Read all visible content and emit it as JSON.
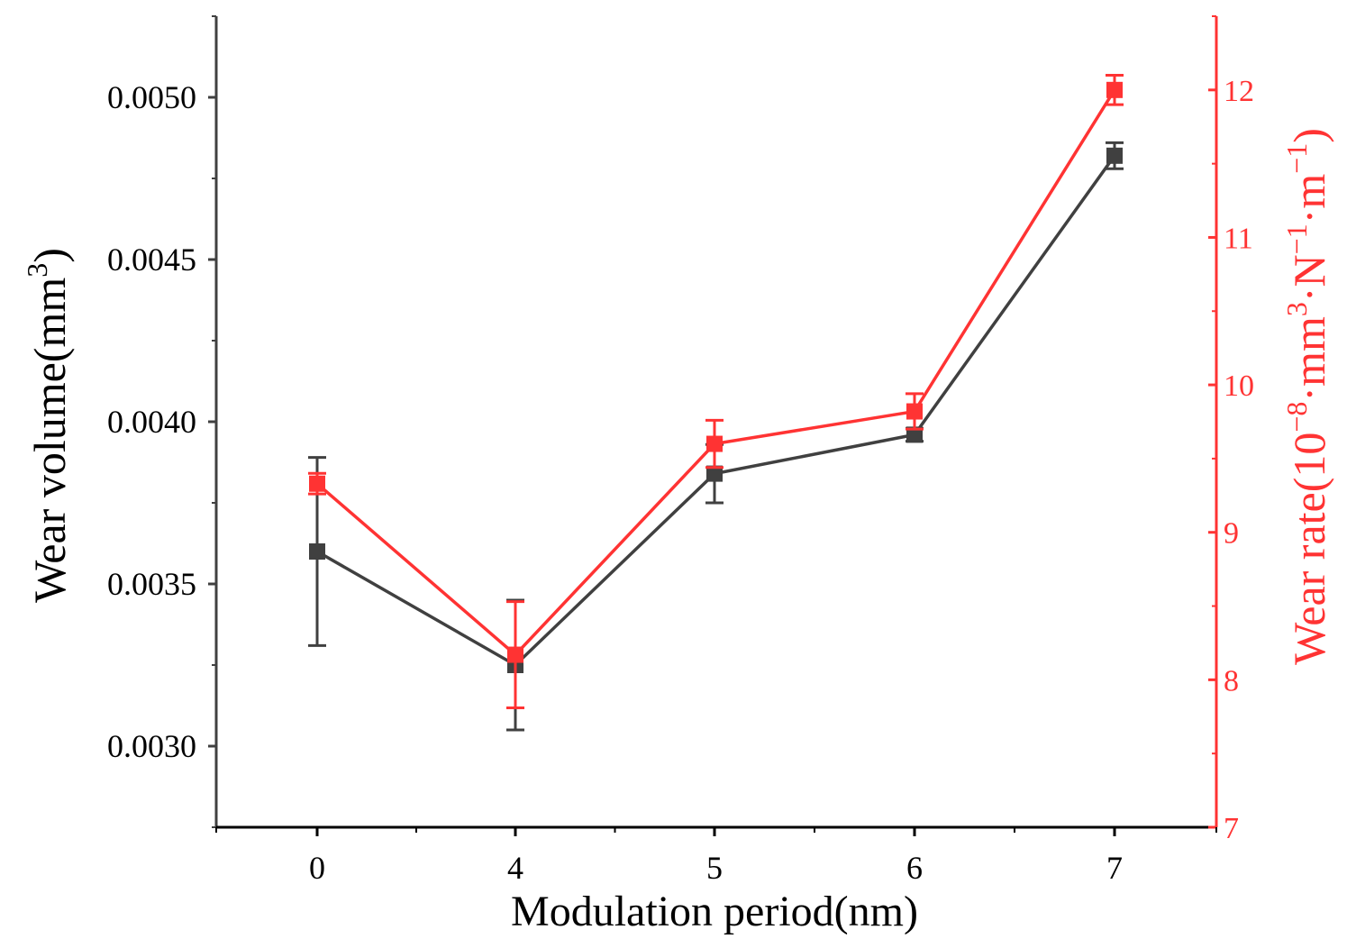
{
  "chart_data": {
    "type": "line",
    "x_categories": [
      "0",
      "4",
      "5",
      "6",
      "7"
    ],
    "xlabel": "Modulation period(nm)",
    "left_axis": {
      "label_main": "Wear volume(mm",
      "label_sup": "3",
      "label_close": ")",
      "range": [
        0.00275,
        0.00525
      ],
      "ticks": [
        0.003,
        0.0035,
        0.004,
        0.0045,
        0.005
      ],
      "tick_labels": [
        "0.0030",
        "0.0035",
        "0.0040",
        "0.0045",
        "0.0050"
      ],
      "color": "#404040"
    },
    "right_axis": {
      "label_parts": [
        {
          "t": "Wear rate(10",
          "sup": false
        },
        {
          "t": "−8",
          "sup": true
        },
        {
          "t": "·mm",
          "sup": false
        },
        {
          "t": "3",
          "sup": true
        },
        {
          "t": "·N",
          "sup": false
        },
        {
          "t": "−1",
          "sup": true
        },
        {
          "t": "·m",
          "sup": false
        },
        {
          "t": "−1",
          "sup": true
        },
        {
          "t": ")",
          "sup": false
        }
      ],
      "range": [
        7,
        12.5
      ],
      "ticks": [
        7,
        8,
        9,
        10,
        11,
        12
      ],
      "tick_labels": [
        "7",
        "8",
        "9",
        "10",
        "11",
        "12"
      ],
      "color": "#ff3333"
    },
    "series": [
      {
        "name": "Wear volume",
        "axis": "left",
        "color": "#404040",
        "values": [
          0.0036,
          0.00325,
          0.00384,
          0.00396,
          0.00482
        ],
        "errors": [
          0.00029,
          0.0002,
          9e-05,
          2e-05,
          4e-05
        ]
      },
      {
        "name": "Wear rate",
        "axis": "right",
        "color": "#ff3333",
        "values": [
          9.33,
          8.17,
          9.6,
          9.82,
          12.0
        ],
        "errors": [
          0.07,
          0.36,
          0.16,
          0.12,
          0.1
        ]
      }
    ]
  }
}
